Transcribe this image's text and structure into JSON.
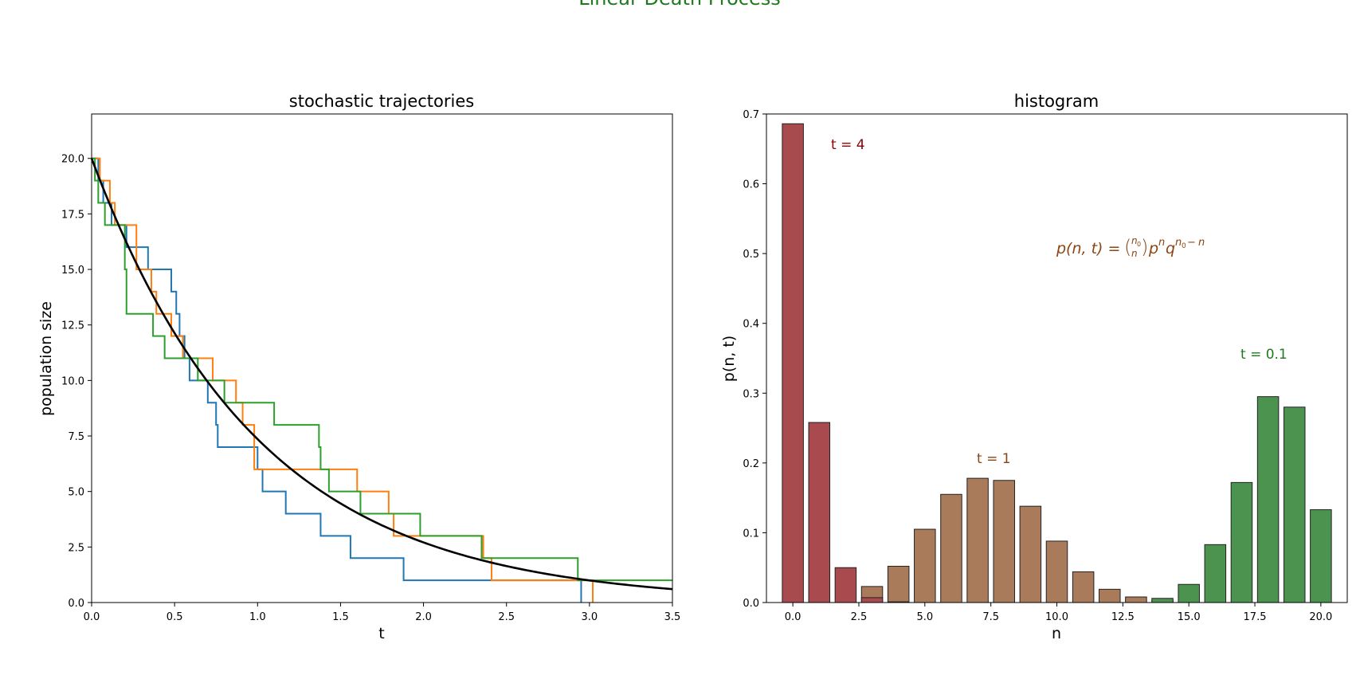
{
  "figure": {
    "suptitle": "Linear Death Process",
    "suptitle_color": "#1f7a1f"
  },
  "chart_data": [
    {
      "type": "line",
      "title": "stochastic trajectories",
      "xlabel": "t",
      "ylabel": "population size",
      "xlim": [
        0.0,
        3.5
      ],
      "ylim": [
        0.0,
        22.0
      ],
      "xticks": [
        "0.0",
        "0.5",
        "1.0",
        "1.5",
        "2.0",
        "2.5",
        "3.0",
        "3.5"
      ],
      "yticks": [
        "0.0",
        "2.5",
        "5.0",
        "7.5",
        "10.0",
        "12.5",
        "15.0",
        "17.5",
        "20.0"
      ],
      "grid": false,
      "mean_curve": {
        "formula": "20*exp(-t)",
        "color": "#000000"
      },
      "series": [
        {
          "color": "#1f77b4",
          "style": "step",
          "x": [
            0.0,
            0.04,
            0.07,
            0.12,
            0.21,
            0.25,
            0.28,
            0.34,
            0.48,
            0.51,
            0.53,
            0.56,
            0.59,
            0.65,
            0.7,
            0.75,
            0.76,
            1.0,
            1.03,
            1.17,
            1.38,
            1.56,
            1.88,
            2.95
          ],
          "y": [
            20,
            19,
            18,
            17,
            16,
            16,
            16,
            15,
            14,
            13,
            12,
            11,
            10,
            10,
            9,
            8,
            7,
            6,
            5,
            4,
            3,
            2,
            1,
            0
          ]
        },
        {
          "color": "#ff7f0e",
          "style": "step",
          "x": [
            0.0,
            0.05,
            0.11,
            0.14,
            0.16,
            0.27,
            0.36,
            0.39,
            0.48,
            0.55,
            0.73,
            0.87,
            0.91,
            0.98,
            1.6,
            1.79,
            1.82,
            2.36,
            2.41,
            3.02
          ],
          "y": [
            20,
            19,
            18,
            17,
            17,
            15,
            14,
            13,
            12,
            11,
            10,
            9,
            8,
            6,
            5,
            4,
            3,
            2,
            1,
            0
          ]
        },
        {
          "color": "#2ca02c",
          "style": "step",
          "x": [
            0.0,
            0.02,
            0.04,
            0.08,
            0.2,
            0.21,
            0.37,
            0.44,
            0.64,
            0.8,
            1.1,
            1.37,
            1.38,
            1.43,
            1.62,
            1.98,
            2.35,
            2.93
          ],
          "y": [
            20,
            19,
            18,
            17,
            15,
            13,
            12,
            11,
            10,
            9,
            8,
            7,
            6,
            5,
            4,
            3,
            2,
            1
          ]
        }
      ]
    },
    {
      "type": "bar",
      "title": "histogram",
      "xlabel": "n",
      "ylabel": "p(n, t)",
      "xlim": [
        -1.0,
        21.0
      ],
      "ylim": [
        0.0,
        0.7
      ],
      "xticks": [
        "0.0",
        "2.5",
        "5.0",
        "7.5",
        "10.0",
        "12.5",
        "15.0",
        "17.5",
        "20.0"
      ],
      "yticks": [
        "0.0",
        "0.1",
        "0.2",
        "0.3",
        "0.4",
        "0.5",
        "0.6",
        "0.7"
      ],
      "grid": false,
      "formula_label": "p(n, t) = (n0 choose n) p^n q^(n0 − n)",
      "formula_color": "#8b4513",
      "series": [
        {
          "name": "t = 4",
          "color": "#a94a4f",
          "values": [
            0.686,
            0.258,
            0.05,
            0.007,
            0.001,
            0,
            0,
            0,
            0,
            0,
            0,
            0,
            0,
            0,
            0,
            0,
            0,
            0,
            0,
            0,
            0
          ]
        },
        {
          "name": "t = 1",
          "color": "#a97b5a",
          "values": [
            0,
            0,
            0,
            0.023,
            0.052,
            0.105,
            0.155,
            0.178,
            0.175,
            0.138,
            0.088,
            0.044,
            0.019,
            0.008,
            0.003,
            0,
            0,
            0,
            0,
            0,
            0
          ]
        },
        {
          "name": "t = 0.1",
          "color": "#4c934f",
          "values": [
            0,
            0,
            0,
            0,
            0,
            0,
            0,
            0,
            0,
            0,
            0,
            0,
            0,
            0,
            0.006,
            0.026,
            0.083,
            0.172,
            0.295,
            0.28,
            0.133
          ]
        }
      ],
      "annotations": [
        {
          "text": "t = 4",
          "color": "#8b0000"
        },
        {
          "text": "t = 1",
          "color": "#8b4513"
        },
        {
          "text": "t = 0.1",
          "color": "#1f7a1f"
        }
      ]
    }
  ]
}
